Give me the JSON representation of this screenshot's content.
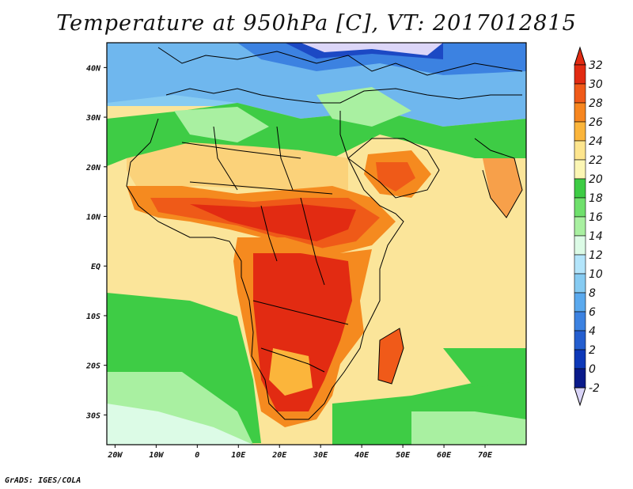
{
  "title": "Temperature at 950hPa [C], VT: 2017012815",
  "credit": "GrADS: IGES/COLA",
  "map": {
    "lon_range": [
      -22,
      80
    ],
    "lat_range": [
      -36,
      45
    ],
    "x_ticks": [
      {
        "lon": -20,
        "label": "20W"
      },
      {
        "lon": -10,
        "label": "10W"
      },
      {
        "lon": 0,
        "label": "0"
      },
      {
        "lon": 10,
        "label": "10E"
      },
      {
        "lon": 20,
        "label": "20E"
      },
      {
        "lon": 30,
        "label": "30E"
      },
      {
        "lon": 40,
        "label": "40E"
      },
      {
        "lon": 50,
        "label": "50E"
      },
      {
        "lon": 60,
        "label": "60E"
      },
      {
        "lon": 70,
        "label": "70E"
      }
    ],
    "y_ticks": [
      {
        "lat": 40,
        "label": "40N"
      },
      {
        "lat": 30,
        "label": "30N"
      },
      {
        "lat": 20,
        "label": "20N"
      },
      {
        "lat": 10,
        "label": "10N"
      },
      {
        "lat": 0,
        "label": "EQ"
      },
      {
        "lat": -10,
        "label": "10S"
      },
      {
        "lat": -20,
        "label": "20S"
      },
      {
        "lat": -30,
        "label": "30S"
      }
    ]
  },
  "colorbar": {
    "levels": [
      "32",
      "30",
      "28",
      "26",
      "24",
      "22",
      "20",
      "18",
      "16",
      "14",
      "12",
      "10",
      "8",
      "6",
      "4",
      "2",
      "0",
      "-2"
    ],
    "colors": [
      "#e22b12",
      "#f05a19",
      "#f7861f",
      "#fbb53b",
      "#fde58e",
      "#fbf6b4",
      "#3ecc45",
      "#6fe06c",
      "#a9f0a1",
      "#dcfbe6",
      "#b3e5fb",
      "#86cbf2",
      "#5aa9ee",
      "#3c82e1",
      "#245ecf",
      "#0d38b8",
      "#0a1a8a",
      "#d9d4f7"
    ]
  }
}
